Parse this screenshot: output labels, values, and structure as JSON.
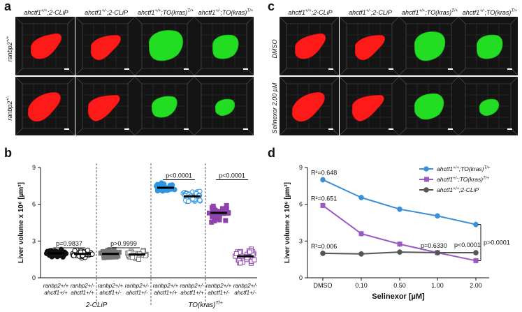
{
  "panels": {
    "a": {
      "label": "a",
      "col_titles": [
        "ahctf1+/+;2-CLiP",
        "ahctf1+/-;2-CLiP",
        "ahctf1+/+;TO(kras)T/+",
        "ahctf1+/-;TO(kras)T/+"
      ],
      "row_labels": [
        "ranbp2+/+",
        "ranbp2+/-"
      ],
      "tiles": [
        {
          "color": "#ff1a1a",
          "shape": "red1"
        },
        {
          "color": "#ff1a1a",
          "shape": "red2"
        },
        {
          "color": "#22dd22",
          "shape": "green1"
        },
        {
          "color": "#22dd22",
          "shape": "green2"
        },
        {
          "color": "#ff1a1a",
          "shape": "red3"
        },
        {
          "color": "#ff1a1a",
          "shape": "red4"
        },
        {
          "color": "#22dd22",
          "shape": "green3"
        },
        {
          "color": "#22dd22",
          "shape": "green4"
        }
      ]
    },
    "c": {
      "label": "c",
      "col_titles": [
        "ahctf1+/+;2-CLiP",
        "ahctf1+/-;2-CLiP",
        "ahctf1+/+;TO(kras)T/+",
        "ahctf1+/-;TO(kras)T/+"
      ],
      "row_labels": [
        "DMSO",
        "Selinexor 2.00 µM"
      ],
      "tiles": [
        {
          "color": "#ff1a1a",
          "shape": "red1"
        },
        {
          "color": "#ff1a1a",
          "shape": "red2"
        },
        {
          "color": "#22dd22",
          "shape": "green5"
        },
        {
          "color": "#22dd22",
          "shape": "green2"
        },
        {
          "color": "#ff1a1a",
          "shape": "red3"
        },
        {
          "color": "#ff1a1a",
          "shape": "red4"
        },
        {
          "color": "#22dd22",
          "shape": "green6"
        },
        {
          "color": "#22dd22",
          "shape": "green4"
        }
      ]
    },
    "b": {
      "label": "b"
    },
    "d": {
      "label": "d"
    }
  },
  "chart_data": [
    {
      "id": "b",
      "type": "scatter",
      "ylabel": "Liver volume x 10⁶ [µm³]",
      "ylim": [
        0,
        9
      ],
      "yticks": [
        0,
        3,
        6,
        9
      ],
      "groups": [
        {
          "line1": "ranbp2+/+",
          "line2": "ahctf1+/+",
          "mean": 2.0,
          "spread": 0.35,
          "n": 40,
          "color": "#111111",
          "marker": "circle"
        },
        {
          "line1": "ranbp2+/-",
          "line2": "ahctf1+/+",
          "mean": 1.95,
          "spread": 0.4,
          "n": 40,
          "color": "#111111",
          "marker": "circle-open"
        },
        {
          "line1": "ranbp2+/+",
          "line2": "ahctf1+/-",
          "mean": 1.95,
          "spread": 0.4,
          "n": 35,
          "color": "#777777",
          "marker": "square"
        },
        {
          "line1": "ranbp2+/-",
          "line2": "ahctf1+/-",
          "mean": 1.9,
          "spread": 0.4,
          "n": 35,
          "color": "#777777",
          "marker": "square-open"
        },
        {
          "line1": "ranbp2+/+",
          "line2": "ahctf1+/+",
          "mean": 7.35,
          "spread": 0.45,
          "n": 40,
          "color": "#2f95e0",
          "marker": "circle"
        },
        {
          "line1": "ranbp2+/-",
          "line2": "ahctf1+/+",
          "mean": 6.65,
          "spread": 0.6,
          "n": 40,
          "color": "#2f95e0",
          "marker": "circle-open"
        },
        {
          "line1": "ranbp2+/+",
          "line2": "ahctf1+/-",
          "mean": 5.3,
          "spread": 0.9,
          "n": 30,
          "color": "#8e44ad",
          "marker": "square"
        },
        {
          "line1": "ranbp2+/-",
          "line2": "ahctf1+/-",
          "mean": 1.75,
          "spread": 0.75,
          "n": 30,
          "color": "#8e44ad",
          "marker": "square-open"
        }
      ],
      "comparisons": [
        {
          "from": 0,
          "to": 1,
          "y": 2.45,
          "label": "p=0.9837"
        },
        {
          "from": 2,
          "to": 3,
          "y": 2.45,
          "label": "p>0.9999"
        },
        {
          "from": 4,
          "to": 5,
          "y": 8.0,
          "label": "p<0.0001"
        },
        {
          "from": 6,
          "to": 7,
          "y": 8.0,
          "label": "p<0.0001"
        }
      ],
      "group_labels": [
        {
          "label": "2-CLiP",
          "from": 0,
          "to": 3
        },
        {
          "label": "TO(kras)T/+",
          "from": 4,
          "to": 7
        }
      ]
    },
    {
      "id": "d",
      "type": "line",
      "xlabel": "Selinexor [µM]",
      "ylabel": "Liver volume x 10⁶ [µm³]",
      "categories": [
        "DMSO",
        "0.10",
        "0.50",
        "1.00",
        "2.00"
      ],
      "ylim": [
        0,
        9
      ],
      "yticks": [
        0,
        3,
        6,
        9
      ],
      "series": [
        {
          "name": "ahctf1+/+;TO(kras)T/+",
          "color": "#3b8fd8",
          "marker": "circle",
          "values": [
            8.0,
            6.55,
            5.6,
            5.05,
            4.35
          ],
          "r2": "R²=0.648"
        },
        {
          "name": "ahctf1+/-;TO(kras)T/+",
          "color": "#9b59c4",
          "marker": "square",
          "values": [
            5.9,
            3.6,
            2.75,
            2.05,
            1.4
          ],
          "r2": "R²=0.651"
        },
        {
          "name": "ahctf1+/+;2-CLiP",
          "color": "#555555",
          "marker": "circle",
          "values": [
            2.0,
            1.95,
            2.1,
            2.05,
            2.05
          ],
          "r2": "R²=0.006"
        }
      ],
      "annotations": [
        {
          "text": "p=0.6330"
        },
        {
          "text": "p<0.0001"
        },
        {
          "text": "p>0.0001"
        }
      ]
    }
  ]
}
